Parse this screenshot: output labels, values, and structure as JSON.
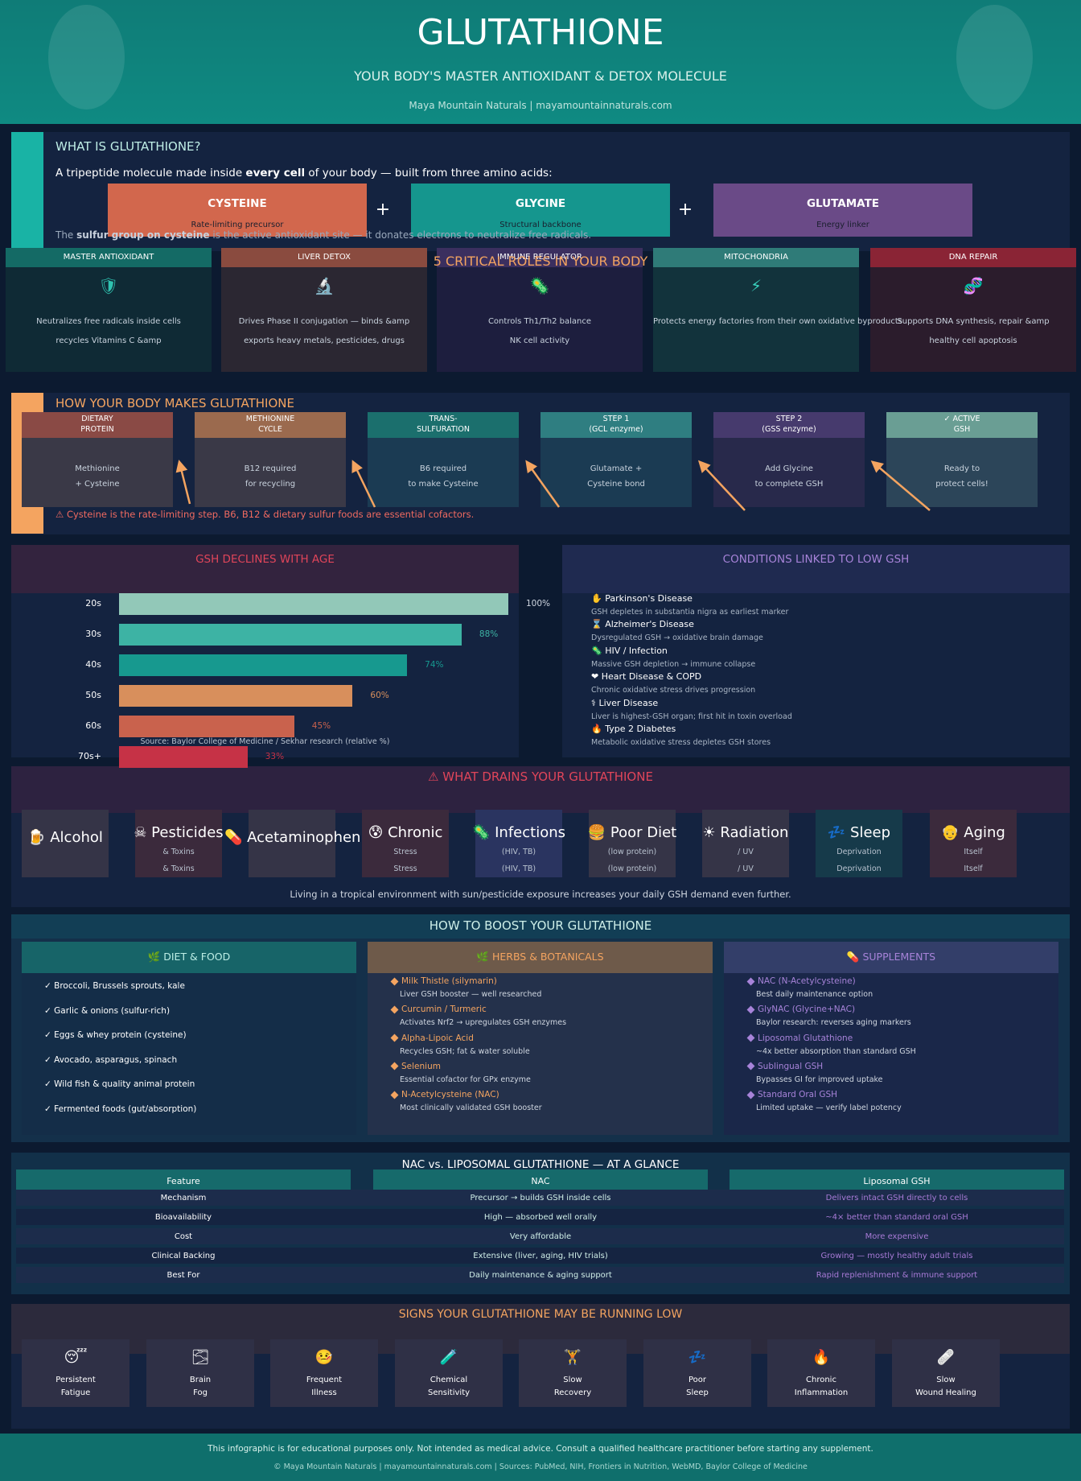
{
  "header": {
    "title": "GLUTATHIONE",
    "subtitle": "YOUR BODY'S MASTER ANTIOXIDANT & DETOX MOLECULE",
    "byline": "Maya Mountain Naturals  |  mayamountainnaturals.com"
  },
  "intro": {
    "heading": "WHAT IS GLUTATHIONE?",
    "text_before": "A tripeptide molecule made inside ",
    "text_bold": "every cell",
    "text_after": " of your body — built from three amino acids:",
    "amino_acids": [
      {
        "name": "CYSTEINE",
        "role": "Rate-limiting precursor"
      },
      {
        "name": "GLYCINE",
        "role": "Structural backbone"
      },
      {
        "name": "GLUTAMATE",
        "role": "Energy linker"
      }
    ],
    "plus": "+",
    "note_before": "The ",
    "note_bold": "sulfur group on cysteine",
    "note_after": " is the active antioxidant site — it donates electrons to neutralize free radicals."
  },
  "roles": {
    "title": "5 CRITICAL ROLES IN YOUR BODY",
    "items": [
      {
        "label": "MASTER ANTIOXIDANT",
        "icon": "🛡",
        "lines": [
          "Neutralizes free radicals inside cells",
          "recycles Vitamins C &amp"
        ]
      },
      {
        "label": "LIVER DETOX",
        "icon": "🔬",
        "lines": [
          "Drives Phase II conjugation — binds &amp",
          "exports heavy metals, pesticides, drugs"
        ]
      },
      {
        "label": "IMMUNE REGULATOR",
        "icon": "🦠",
        "lines": [
          "Controls Th1/Th2 balance",
          "NK cell activity"
        ]
      },
      {
        "label": "MITOCHONDRIA",
        "icon": "⚡",
        "lines": [
          "Protects energy factories from their own oxidative byproducts"
        ]
      },
      {
        "label": "DNA REPAIR",
        "icon": "🧬",
        "lines": [
          "Supports DNA synthesis, repair &amp",
          "healthy cell apoptosis"
        ]
      }
    ]
  },
  "synthesis": {
    "heading": "HOW YOUR BODY MAKES GLUTATHIONE",
    "steps": [
      {
        "title": [
          "DIETARY",
          "PROTEIN"
        ],
        "lines": [
          "Methionine",
          "+ Cysteine"
        ]
      },
      {
        "title": [
          "METHIONINE",
          "CYCLE"
        ],
        "lines": [
          "B12 required",
          "for recycling"
        ]
      },
      {
        "title": [
          "TRANS-",
          "SULFURATION"
        ],
        "lines": [
          "B6 required",
          "to make Cysteine"
        ]
      },
      {
        "title": [
          "STEP 1",
          "(GCL enzyme)"
        ],
        "lines": [
          "Glutamate +",
          "Cysteine bond"
        ]
      },
      {
        "title": [
          "STEP 2",
          "(GSS enzyme)"
        ],
        "lines": [
          "Add Glycine",
          "to complete GSH"
        ]
      },
      {
        "title": [
          "✓ ACTIVE",
          "GSH"
        ],
        "lines": [
          "Ready to",
          "protect cells!"
        ]
      }
    ],
    "warning": "⚠  Cysteine is the rate-limiting step. B6, B12 & dietary sulfur foods are essential cofactors."
  },
  "chart_data": {
    "type": "bar",
    "orientation": "horizontal",
    "title": "GSH DECLINES WITH AGE",
    "categories": [
      "20s",
      "30s",
      "40s",
      "50s",
      "60s",
      "70s+"
    ],
    "values": [
      100,
      88,
      74,
      60,
      45,
      33
    ],
    "value_labels": [
      "100%",
      "88%",
      "74%",
      "60%",
      "45%",
      "33%"
    ],
    "colors": [
      "#92c8b8",
      "#3db3a4",
      "#17998f",
      "#d88f5c",
      "#c9624d",
      "#c63246"
    ],
    "xlim": [
      0,
      100
    ],
    "source": "Source: Baylor College of Medicine / Sekhar research (relative %)"
  },
  "conditions": {
    "title": "CONDITIONS LINKED TO LOW GSH",
    "items": [
      {
        "name": "✋ Parkinson's Disease",
        "desc": "GSH depletes in substantia nigra as earliest marker"
      },
      {
        "name": "⌛ Alzheimer's Disease",
        "desc": "Dysregulated GSH → oxidative brain damage"
      },
      {
        "name": "🦠 HIV / Infection",
        "desc": "Massive GSH depletion → immune collapse"
      },
      {
        "name": "❤ Heart Disease & COPD",
        "desc": "Chronic oxidative stress drives progression"
      },
      {
        "name": "⚕ Liver Disease",
        "desc": "Liver is highest-GSH organ; first hit in toxin overload"
      },
      {
        "name": "🔥 Type 2 Diabetes",
        "desc": "Metabolic oxidative stress depletes GSH stores"
      }
    ]
  },
  "drains": {
    "title": "⚠  WHAT DRAINS YOUR GLUTATHIONE",
    "items": [
      {
        "name": "🍺 Alcohol",
        "lines": []
      },
      {
        "name": "☠ Pesticides",
        "lines": [
          "& Toxins",
          "& Toxins"
        ]
      },
      {
        "name": "💊 Acetaminophen",
        "lines": []
      },
      {
        "name": "😰 Chronic",
        "lines": [
          "Stress",
          "Stress"
        ]
      },
      {
        "name": "🦠 Infections",
        "lines": [
          "(HIV, TB)",
          "(HIV, TB)"
        ]
      },
      {
        "name": "🍔 Poor Diet",
        "lines": [
          "(low protein)",
          "(low protein)"
        ]
      },
      {
        "name": "☀ Radiation",
        "lines": [
          "/ UV",
          "/ UV"
        ]
      },
      {
        "name": "💤 Sleep",
        "lines": [
          "Deprivation",
          "Deprivation"
        ]
      },
      {
        "name": "👴 Aging",
        "lines": [
          "Itself",
          "Itself"
        ]
      }
    ],
    "note": "Living in a tropical environment with sun/pesticide exposure increases your daily GSH demand even further."
  },
  "boost": {
    "title": "HOW TO BOOST YOUR GLUTATHIONE",
    "diet": {
      "heading": "🌿  DIET & FOOD",
      "items": [
        "✓  Broccoli, Brussels sprouts, kale",
        "✓  Garlic & onions (sulfur-rich)",
        "✓  Eggs & whey protein (cysteine)",
        "✓  Avocado, asparagus, spinach",
        "✓  Wild fish & quality animal protein",
        "✓  Fermented foods (gut/absorption)"
      ]
    },
    "herbs": {
      "heading": "🌿  HERBS & BOTANICALS",
      "items": [
        {
          "name": "Milk Thistle (silymarin)",
          "desc": "Liver GSH booster — well researched"
        },
        {
          "name": "Curcumin / Turmeric",
          "desc": "Activates Nrf2 → upregulates GSH enzymes"
        },
        {
          "name": "Alpha-Lipoic Acid",
          "desc": "Recycles GSH; fat & water soluble"
        },
        {
          "name": "Selenium",
          "desc": "Essential cofactor for GPx enzyme"
        },
        {
          "name": "N-Acetylcysteine (NAC)",
          "desc": "Most clinically validated GSH booster"
        }
      ]
    },
    "supplements": {
      "heading": "💊  SUPPLEMENTS",
      "items": [
        {
          "name": "NAC (N-Acetylcysteine)",
          "desc": "Best daily maintenance option"
        },
        {
          "name": "GlyNAC (Glycine+NAC)",
          "desc": "Baylor research: reverses aging markers"
        },
        {
          "name": "Liposomal Glutathione",
          "desc": "~4x better absorption than standard GSH"
        },
        {
          "name": "Sublingual GSH",
          "desc": "Bypasses GI for improved uptake"
        },
        {
          "name": "Standard Oral GSH",
          "desc": "Limited uptake — verify label potency"
        }
      ]
    }
  },
  "table": {
    "title": "NAC vs. LIPOSOMAL GLUTATHIONE — AT A GLANCE",
    "header": [
      "Feature",
      "NAC",
      "Liposomal GSH"
    ],
    "rows": [
      [
        "Mechanism",
        "Precursor → builds GSH inside cells",
        "Delivers intact GSH directly to cells"
      ],
      [
        "Bioavailability",
        "High — absorbed well orally",
        "~4× better than standard oral GSH"
      ],
      [
        "Cost",
        "Very affordable",
        "More expensive"
      ],
      [
        "Clinical Backing",
        "Extensive (liver, aging, HIV trials)",
        "Growing — mostly healthy adult trials"
      ],
      [
        "Best For",
        "Daily maintenance & aging support",
        "Rapid replenishment & immune support"
      ]
    ]
  },
  "signs": {
    "title": "SIGNS YOUR GLUTATHIONE MAY BE RUNNING LOW",
    "items": [
      {
        "icon": "😴",
        "lines": [
          "Persistent",
          "Fatigue"
        ]
      },
      {
        "icon": "🌫",
        "lines": [
          "Brain",
          "Fog"
        ]
      },
      {
        "icon": "🤒",
        "lines": [
          "Frequent",
          "Illness"
        ]
      },
      {
        "icon": "🧪",
        "lines": [
          "Chemical",
          "Sensitivity"
        ]
      },
      {
        "icon": "🏋",
        "lines": [
          "Slow",
          "Recovery"
        ]
      },
      {
        "icon": "💤",
        "lines": [
          "Poor",
          "Sleep"
        ]
      },
      {
        "icon": "🔥",
        "lines": [
          "Chronic",
          "Inflammation"
        ]
      },
      {
        "icon": "🩹",
        "lines": [
          "Slow",
          "Wound Healing"
        ]
      }
    ]
  },
  "footer": {
    "disclaimer": "This infographic is for educational purposes only. Not intended as medical advice. Consult a qualified healthcare practitioner before starting any supplement.",
    "credits": "© Maya Mountain Naturals  |  mayamountainnaturals.com  |  Sources: PubMed, NIH, Frontiers in Nutrition, WebMD, Baylor College of Medicine"
  }
}
